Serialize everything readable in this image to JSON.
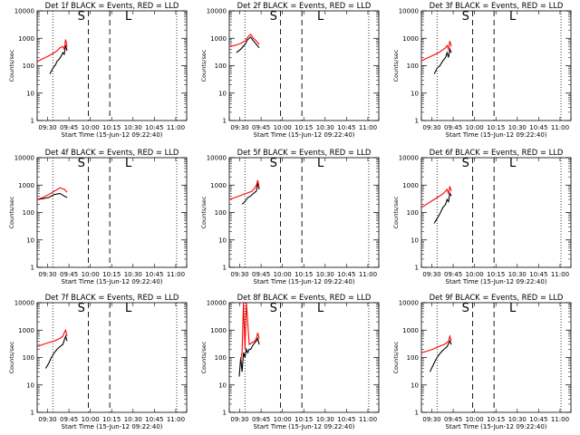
{
  "figure": {
    "series_colors": {
      "events": "#000000",
      "lld": "#ff0000"
    },
    "shared": {
      "xlabel": "Start Time (15-Jun-12 09:22:40)",
      "ylabel": "Counts/sec",
      "x_tick_labels": [
        "09:30",
        "09:45",
        "10:00",
        "10:15",
        "10:30",
        "10:45",
        "11:00"
      ],
      "y_tick_labels": [
        "1",
        "10",
        "100",
        "1000",
        "10000"
      ],
      "markers": [
        "S",
        "L"
      ]
    }
  },
  "chart_data": [
    {
      "type": "line",
      "title": "Det 1f BLACK = Events, RED = LLD",
      "xlabel": "Start Time (15-Jun-12 09:22:40)",
      "ylabel": "Counts/sec",
      "x_unit": "minutes after 09:22:40",
      "y_scale": "log",
      "xlim": [
        0,
        105
      ],
      "ylim": [
        1,
        10000
      ],
      "grid": false,
      "vlines_dotted": [
        11,
        98
      ],
      "vlines_dashed": [
        36,
        51
      ],
      "marker_labels": [
        {
          "text": "S",
          "x": 31
        },
        {
          "text": "L",
          "x": 64
        }
      ],
      "series": [
        {
          "name": "BLACK = Events",
          "color": "#000000",
          "x": [
            9,
            11,
            13,
            14,
            15,
            16,
            17,
            18,
            19,
            20,
            21
          ],
          "y": [
            50,
            80,
            110,
            150,
            160,
            190,
            230,
            300,
            260,
            550,
            350
          ]
        },
        {
          "name": "RED = LLD",
          "color": "#ff0000",
          "x": [
            0,
            3,
            6,
            9,
            12,
            14,
            16,
            18,
            19,
            20,
            21
          ],
          "y": [
            140,
            170,
            200,
            240,
            300,
            350,
            450,
            500,
            400,
            900,
            500
          ]
        }
      ]
    },
    {
      "type": "line",
      "title": "Det 2f BLACK = Events, RED = LLD",
      "xlabel": "Start Time (15-Jun-12 09:22:40)",
      "ylabel": "Counts/sec",
      "x_unit": "minutes after 09:22:40",
      "y_scale": "log",
      "xlim": [
        0,
        105
      ],
      "ylim": [
        1,
        10000
      ],
      "grid": false,
      "vlines_dotted": [
        11,
        98
      ],
      "vlines_dashed": [
        36,
        51
      ],
      "marker_labels": [
        {
          "text": "S",
          "x": 31
        },
        {
          "text": "L",
          "x": 64
        }
      ],
      "series": [
        {
          "name": "BLACK = Events",
          "color": "#000000",
          "x": [
            5,
            8,
            11,
            13,
            15,
            17,
            19,
            21
          ],
          "y": [
            300,
            400,
            600,
            900,
            1100,
            800,
            600,
            450
          ]
        },
        {
          "name": "RED = LLD",
          "color": "#ff0000",
          "x": [
            0,
            4,
            8,
            11,
            13,
            15,
            17,
            19,
            21
          ],
          "y": [
            500,
            550,
            650,
            800,
            1100,
            1400,
            1000,
            800,
            600
          ]
        }
      ]
    },
    {
      "type": "line",
      "title": "Det 3f BLACK = Events, RED = LLD",
      "xlabel": "Start Time (15-Jun-12 09:22:40)",
      "ylabel": "Counts/sec",
      "x_unit": "minutes after 09:22:40",
      "y_scale": "log",
      "xlim": [
        0,
        105
      ],
      "ylim": [
        1,
        10000
      ],
      "grid": false,
      "vlines_dotted": [
        11,
        98
      ],
      "vlines_dashed": [
        36,
        51
      ],
      "marker_labels": [
        {
          "text": "S",
          "x": 31
        },
        {
          "text": "L",
          "x": 64
        }
      ],
      "series": [
        {
          "name": "BLACK = Events",
          "color": "#000000",
          "x": [
            9,
            11,
            13,
            15,
            17,
            18,
            19,
            20,
            21
          ],
          "y": [
            50,
            80,
            100,
            150,
            200,
            300,
            200,
            400,
            300
          ]
        },
        {
          "name": "RED = LLD",
          "color": "#ff0000",
          "x": [
            0,
            3,
            6,
            9,
            12,
            15,
            17,
            18,
            19,
            20,
            21
          ],
          "y": [
            150,
            180,
            210,
            250,
            300,
            380,
            450,
            550,
            400,
            800,
            500
          ]
        }
      ]
    },
    {
      "type": "line",
      "title": "Det 4f BLACK = Events, RED = LLD",
      "xlabel": "Start Time (15-Jun-12 09:22:40)",
      "ylabel": "Counts/sec",
      "x_unit": "minutes after 09:22:40",
      "y_scale": "log",
      "xlim": [
        0,
        105
      ],
      "ylim": [
        1,
        10000
      ],
      "grid": false,
      "vlines_dotted": [
        11,
        98
      ],
      "vlines_dashed": [
        36,
        51
      ],
      "marker_labels": [
        {
          "text": "S",
          "x": 31
        },
        {
          "text": "L",
          "x": 64
        }
      ],
      "series": [
        {
          "name": "BLACK = Events",
          "color": "#000000",
          "x": [
            0,
            4,
            8,
            12,
            16,
            19,
            21
          ],
          "y": [
            300,
            320,
            350,
            450,
            500,
            400,
            350
          ]
        },
        {
          "name": "RED = LLD",
          "color": "#ff0000",
          "x": [
            0,
            4,
            8,
            12,
            16,
            19,
            21
          ],
          "y": [
            300,
            350,
            450,
            600,
            800,
            700,
            550
          ]
        }
      ]
    },
    {
      "type": "line",
      "title": "Det 5f BLACK = Events, RED = LLD",
      "xlabel": "Start Time (15-Jun-12 09:22:40)",
      "ylabel": "Counts/sec",
      "x_unit": "minutes after 09:22:40",
      "y_scale": "log",
      "xlim": [
        0,
        105
      ],
      "ylim": [
        1,
        10000
      ],
      "grid": false,
      "vlines_dotted": [
        11,
        98
      ],
      "vlines_dashed": [
        36,
        51
      ],
      "marker_labels": [
        {
          "text": "S",
          "x": 31
        },
        {
          "text": "L",
          "x": 64
        }
      ],
      "series": [
        {
          "name": "BLACK = Events",
          "color": "#000000",
          "x": [
            9,
            11,
            13,
            15,
            17,
            19,
            20,
            21
          ],
          "y": [
            200,
            250,
            350,
            400,
            500,
            600,
            1200,
            700
          ]
        },
        {
          "name": "RED = LLD",
          "color": "#ff0000",
          "x": [
            0,
            4,
            8,
            12,
            16,
            18,
            19,
            20,
            21
          ],
          "y": [
            300,
            350,
            420,
            500,
            600,
            800,
            1000,
            1500,
            800
          ]
        }
      ]
    },
    {
      "type": "line",
      "title": "Det 6f BLACK = Events, RED = LLD",
      "xlabel": "Start Time (15-Jun-12 09:22:40)",
      "ylabel": "Counts/sec",
      "x_unit": "minutes after 09:22:40",
      "y_scale": "log",
      "xlim": [
        0,
        105
      ],
      "ylim": [
        1,
        10000
      ],
      "grid": false,
      "vlines_dotted": [
        11,
        98
      ],
      "vlines_dashed": [
        36,
        51
      ],
      "marker_labels": [
        {
          "text": "S",
          "x": 31
        },
        {
          "text": "L",
          "x": 64
        }
      ],
      "series": [
        {
          "name": "BLACK = Events",
          "color": "#000000",
          "x": [
            9,
            11,
            13,
            15,
            17,
            18,
            19,
            20,
            21
          ],
          "y": [
            40,
            60,
            90,
            150,
            200,
            300,
            250,
            500,
            400
          ]
        },
        {
          "name": "RED = LLD",
          "color": "#ff0000",
          "x": [
            0,
            3,
            6,
            9,
            12,
            15,
            17,
            18,
            19,
            20,
            21
          ],
          "y": [
            150,
            190,
            240,
            300,
            380,
            480,
            600,
            700,
            500,
            900,
            600
          ]
        }
      ]
    },
    {
      "type": "line",
      "title": "Det 7f BLACK = Events, RED = LLD",
      "xlabel": "Start Time (15-Jun-12 09:22:40)",
      "ylabel": "Counts/sec",
      "x_unit": "minutes after 09:22:40",
      "y_scale": "log",
      "xlim": [
        0,
        105
      ],
      "ylim": [
        1,
        10000
      ],
      "grid": false,
      "vlines_dotted": [
        11,
        98
      ],
      "vlines_dashed": [
        36,
        51
      ],
      "marker_labels": [
        {
          "text": "S",
          "x": 31
        },
        {
          "text": "L",
          "x": 64
        }
      ],
      "series": [
        {
          "name": "BLACK = Events",
          "color": "#000000",
          "x": [
            6,
            8,
            10,
            12,
            14,
            16,
            18,
            20,
            21
          ],
          "y": [
            40,
            60,
            100,
            150,
            200,
            250,
            300,
            600,
            400
          ]
        },
        {
          "name": "RED = LLD",
          "color": "#ff0000",
          "x": [
            0,
            4,
            8,
            12,
            16,
            18,
            19,
            20,
            21
          ],
          "y": [
            250,
            300,
            350,
            400,
            500,
            600,
            800,
            1000,
            600
          ]
        }
      ]
    },
    {
      "type": "line",
      "title": "Det 8f BLACK = Events, RED = LLD",
      "xlabel": "Start Time (15-Jun-12 09:22:40)",
      "ylabel": "Counts/sec",
      "x_unit": "minutes after 09:22:40",
      "y_scale": "log",
      "xlim": [
        0,
        105
      ],
      "ylim": [
        1,
        10000
      ],
      "grid": false,
      "vlines_dotted": [
        11,
        98
      ],
      "vlines_dashed": [
        36,
        51
      ],
      "marker_labels": [
        {
          "text": "S",
          "x": 31
        },
        {
          "text": "L",
          "x": 64
        }
      ],
      "series": [
        {
          "name": "BLACK = Events",
          "color": "#000000",
          "x": [
            7,
            8,
            9,
            10,
            11,
            12,
            13,
            14,
            15,
            16,
            17,
            18,
            19,
            20,
            21
          ],
          "y": [
            20,
            100,
            30,
            150,
            100,
            200,
            150,
            200,
            200,
            250,
            300,
            350,
            400,
            500,
            300
          ]
        },
        {
          "name": "RED = LLD",
          "color": "#ff0000",
          "x": [
            8,
            9,
            10,
            11,
            12,
            14,
            16,
            18,
            19,
            20,
            21
          ],
          "y": [
            80,
            150,
            10000,
            200,
            10000,
            300,
            350,
            400,
            500,
            800,
            500
          ]
        }
      ]
    },
    {
      "type": "line",
      "title": "Det 9f BLACK = Events, RED = LLD",
      "xlabel": "Start Time (15-Jun-12 09:22:40)",
      "ylabel": "Counts/sec",
      "x_unit": "minutes after 09:22:40",
      "y_scale": "log",
      "xlim": [
        0,
        105
      ],
      "ylim": [
        1,
        10000
      ],
      "grid": false,
      "vlines_dotted": [
        11,
        98
      ],
      "vlines_dashed": [
        36,
        51
      ],
      "marker_labels": [
        {
          "text": "S",
          "x": 31
        },
        {
          "text": "L",
          "x": 64
        }
      ],
      "series": [
        {
          "name": "BLACK = Events",
          "color": "#000000",
          "x": [
            6,
            8,
            10,
            12,
            14,
            16,
            18,
            20,
            21
          ],
          "y": [
            30,
            50,
            80,
            120,
            160,
            200,
            250,
            400,
            300
          ]
        },
        {
          "name": "RED = LLD",
          "color": "#ff0000",
          "x": [
            0,
            4,
            8,
            12,
            16,
            18,
            19,
            20,
            21
          ],
          "y": [
            150,
            170,
            200,
            250,
            300,
            350,
            400,
            600,
            400
          ]
        }
      ]
    }
  ]
}
